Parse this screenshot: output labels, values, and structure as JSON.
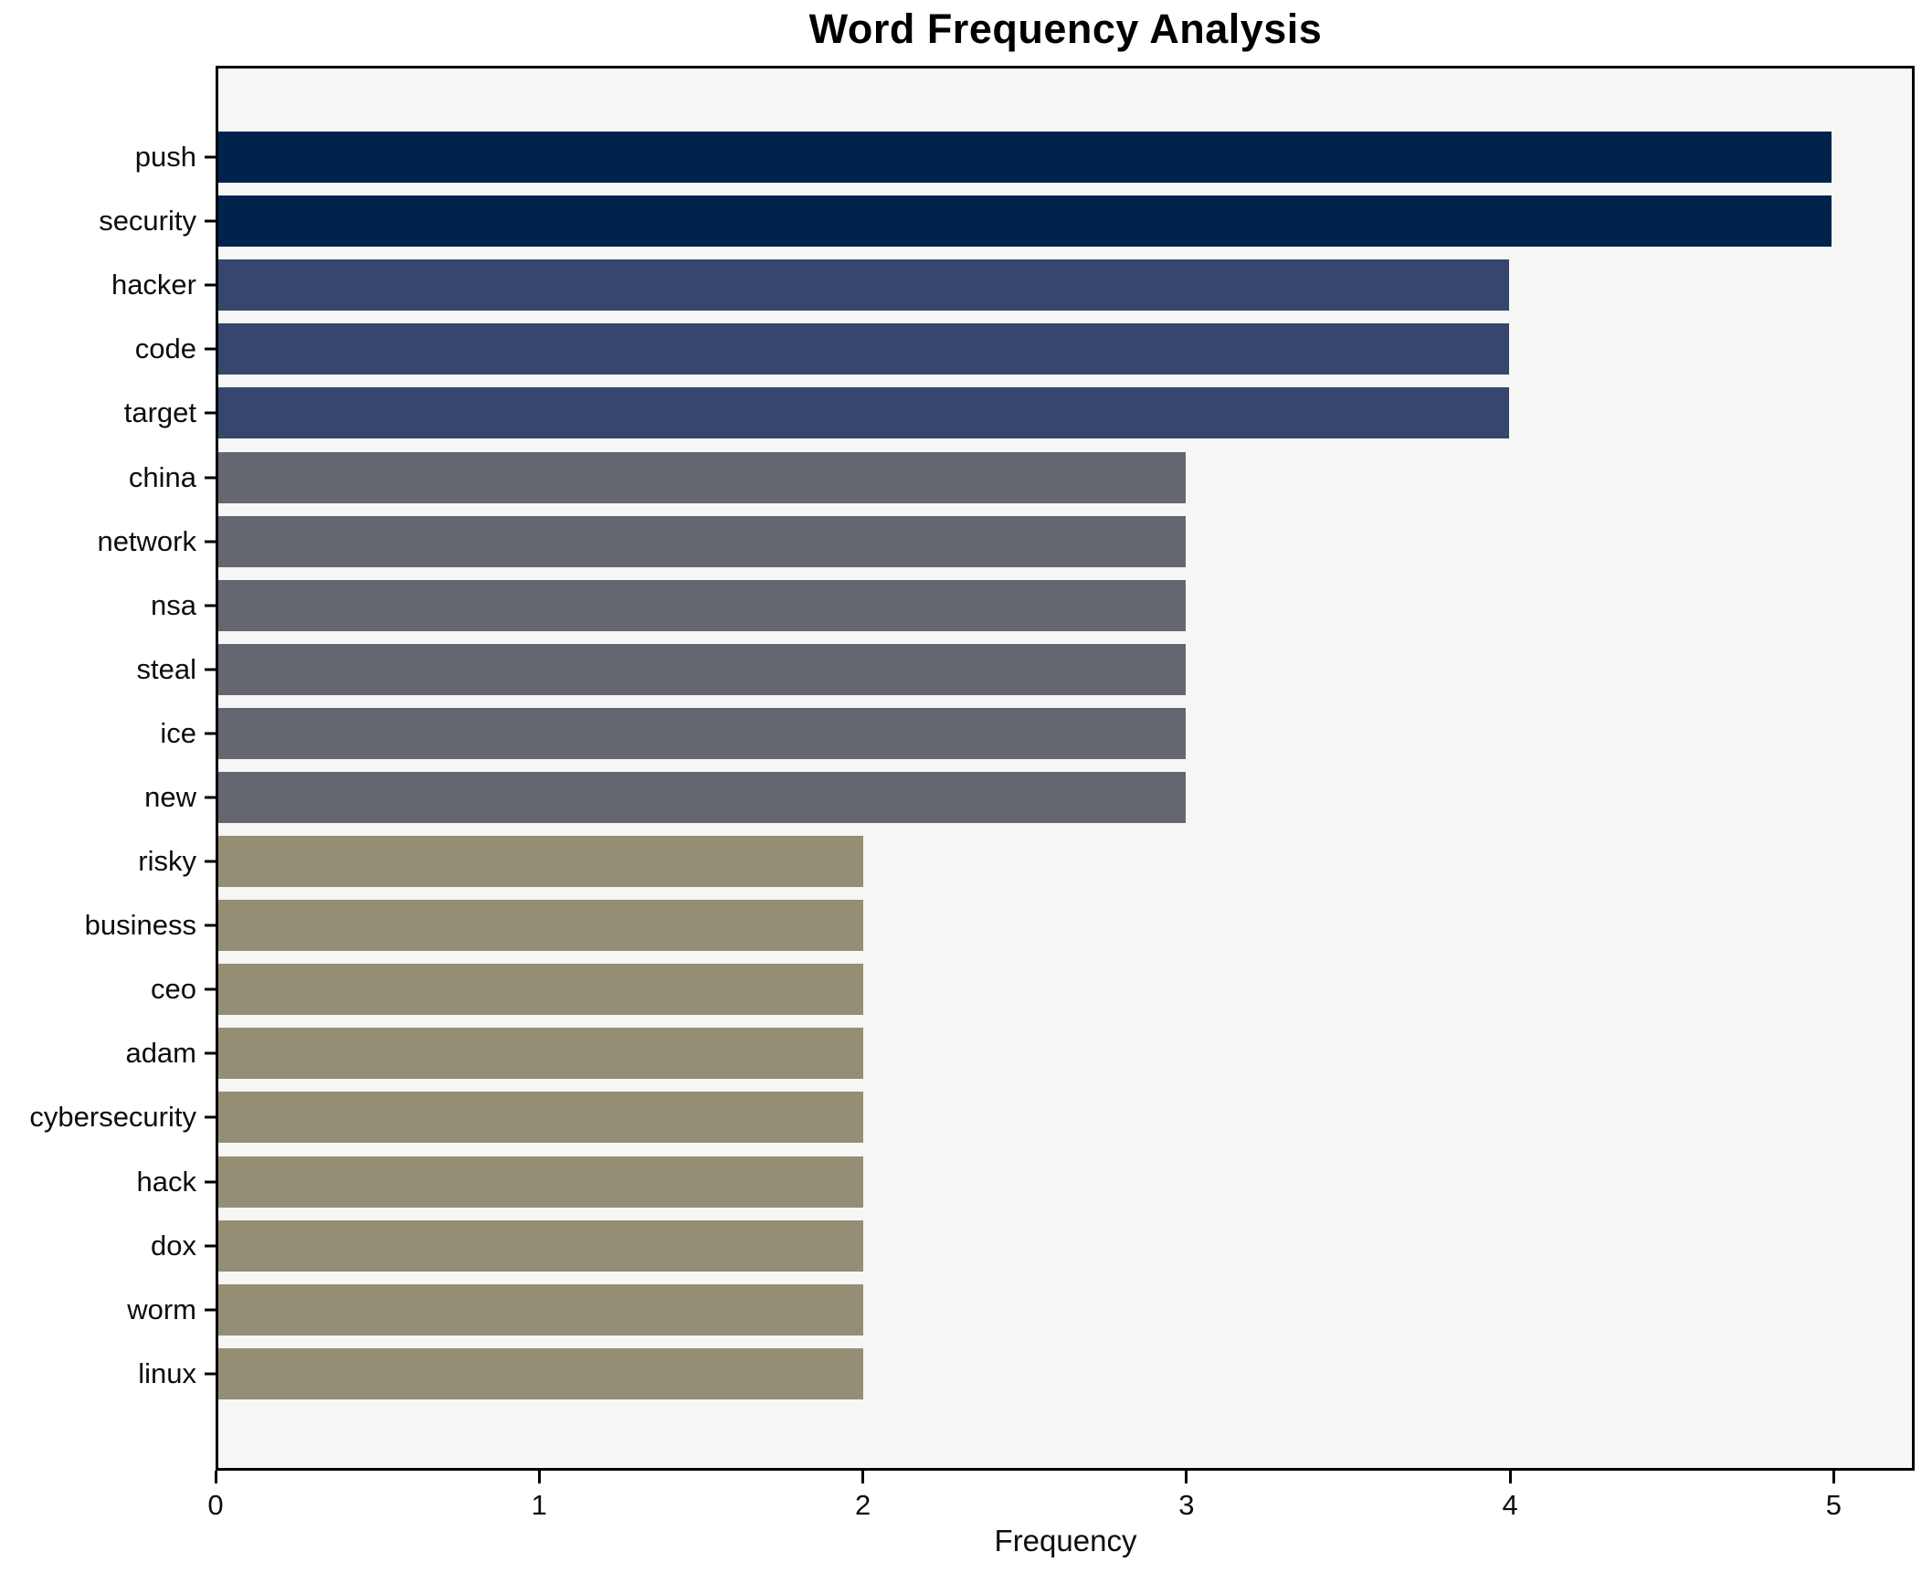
{
  "chart_data": {
    "type": "bar",
    "orientation": "horizontal",
    "title": "Word Frequency Analysis",
    "xlabel": "Frequency",
    "ylabel": "",
    "categories": [
      "push",
      "security",
      "hacker",
      "code",
      "target",
      "china",
      "network",
      "nsa",
      "steal",
      "ice",
      "new",
      "risky",
      "business",
      "ceo",
      "adam",
      "cybersecurity",
      "hack",
      "dox",
      "worm",
      "linux"
    ],
    "values": [
      5,
      5,
      4,
      4,
      4,
      3,
      3,
      3,
      3,
      3,
      3,
      2,
      2,
      2,
      2,
      2,
      2,
      2,
      2,
      2
    ],
    "bar_colors": [
      "#00234d",
      "#00234d",
      "#36466c",
      "#36466c",
      "#36466c",
      "#64676f",
      "#64676f",
      "#64676f",
      "#64676f",
      "#64676f",
      "#64676f",
      "#948e74",
      "#948e74",
      "#948e74",
      "#948e74",
      "#948e74",
      "#948e74",
      "#948e74",
      "#948e74",
      "#948e74"
    ],
    "xlim": [
      0,
      5.25
    ],
    "xticks": [
      0,
      1,
      2,
      3,
      4,
      5
    ],
    "grid": false,
    "legend": null,
    "plot_bg": "#f6f6f5",
    "fig_bg": "#ffffff",
    "spine_color": "#000000"
  }
}
